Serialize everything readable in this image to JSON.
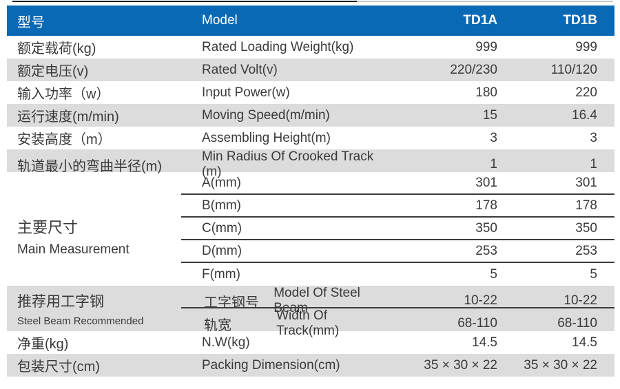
{
  "header": {
    "col1": "型号",
    "col2": "Model",
    "model_a": "TD1A",
    "model_b": "TD1B"
  },
  "colors": {
    "header_bg": "#0a69b5",
    "header_text": "#ffffff",
    "row_alt_bg": "#dcdcdc",
    "body_text": "#3a3a3a",
    "separator": "#3b3b3b"
  },
  "rows": [
    {
      "cn": "额定载荷(kg)",
      "en": "Rated Loading Weight(kg)",
      "td1a": "999",
      "td1b": "999"
    },
    {
      "cn": "额定电压(v)",
      "en": "Rated Volt(v)",
      "td1a": "220/230",
      "td1b": "110/120"
    },
    {
      "cn": "输入功率（w）",
      "en": "Input Power(w)",
      "td1a": "180",
      "td1b": "220"
    },
    {
      "cn": "运行速度(m/min)",
      "en": "Moving Speed(m/min)",
      "td1a": "15",
      "td1b": "16.4"
    },
    {
      "cn": "安装高度（m）",
      "en": "Assembling Height(m)",
      "td1a": "3",
      "td1b": "3"
    },
    {
      "cn": "轨道最小的弯曲半径(m)",
      "en": "Min Radius Of Crooked Track (m)",
      "td1a": "1",
      "td1b": "1"
    }
  ],
  "main_measurement": {
    "cn": "主要尺寸",
    "en": "Main Measurement",
    "subrows": [
      {
        "label": "A(mm)",
        "td1a": "301",
        "td1b": "301"
      },
      {
        "label": "B(mm)",
        "td1a": "178",
        "td1b": "178"
      },
      {
        "label": "C(mm)",
        "td1a": "350",
        "td1b": "350"
      },
      {
        "label": "D(mm)",
        "td1a": "253",
        "td1b": "253"
      },
      {
        "label": "F(mm)",
        "td1a": "5",
        "td1b": "5"
      }
    ]
  },
  "steel_beam": {
    "cn": "推荐用工字钢",
    "en": "Steel Beam Recommended",
    "subrows": [
      {
        "cn": "工字钢号",
        "en": "Model Of Steel Beam",
        "td1a": "10-22",
        "td1b": "10-22"
      },
      {
        "cn": "轨宽",
        "en": "Width Of Track(mm)",
        "td1a": "68-110",
        "td1b": "68-110"
      }
    ]
  },
  "bottom_rows": [
    {
      "cn": "净重(kg)",
      "en": "N.W(kg)",
      "td1a": "14.5",
      "td1b": "14.5"
    },
    {
      "cn": "包装尺寸(cm)",
      "en": "Packing Dimension(cm)",
      "td1a": "35 × 30 × 22",
      "td1b": "35 × 30 × 22"
    }
  ]
}
